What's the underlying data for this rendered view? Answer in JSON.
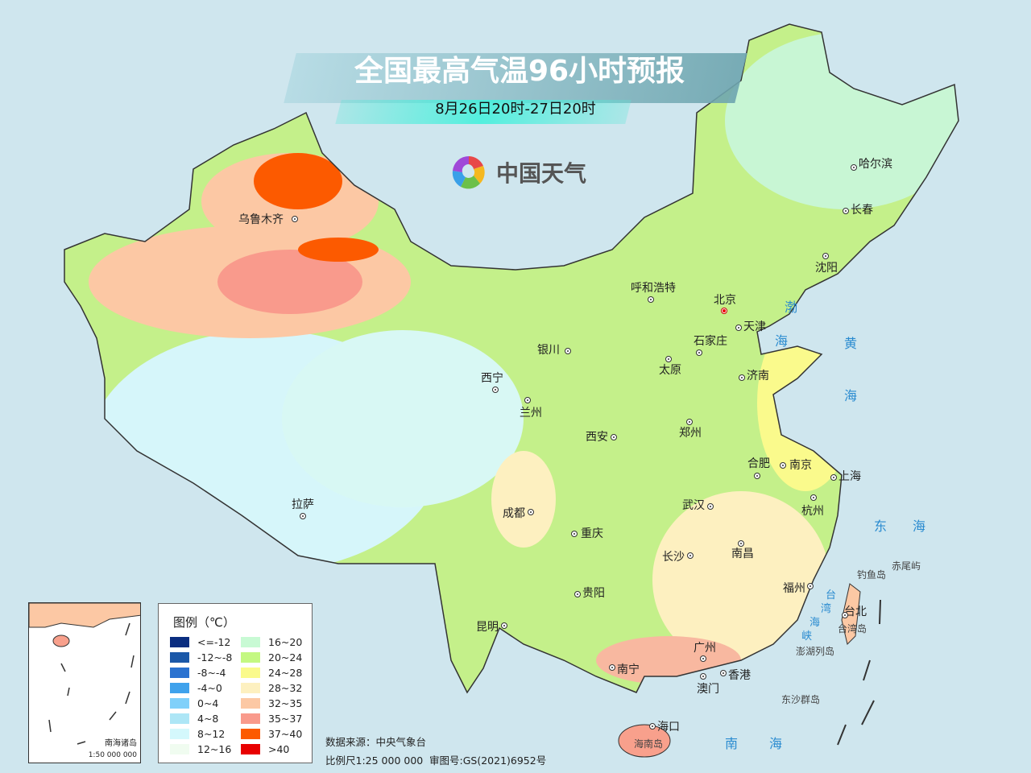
{
  "header": {
    "title": "全国最高气温96小时预报",
    "subtitle": "8月26日20时-27日20时"
  },
  "logo": {
    "text": "中国天气",
    "icon": "pinwheel-logo-icon"
  },
  "cities": [
    {
      "name": "乌鲁木齐"
    },
    {
      "name": "哈尔滨"
    },
    {
      "name": "长春"
    },
    {
      "name": "沈阳"
    },
    {
      "name": "呼和浩特"
    },
    {
      "name": "北京"
    },
    {
      "name": "天津"
    },
    {
      "name": "石家庄"
    },
    {
      "name": "太原"
    },
    {
      "name": "济南"
    },
    {
      "name": "银川"
    },
    {
      "name": "西宁"
    },
    {
      "name": "兰州"
    },
    {
      "name": "西安"
    },
    {
      "name": "郑州"
    },
    {
      "name": "合肥"
    },
    {
      "name": "南京"
    },
    {
      "name": "上海"
    },
    {
      "name": "杭州"
    },
    {
      "name": "武汉"
    },
    {
      "name": "成都"
    },
    {
      "name": "重庆"
    },
    {
      "name": "长沙"
    },
    {
      "name": "南昌"
    },
    {
      "name": "拉萨"
    },
    {
      "name": "贵阳"
    },
    {
      "name": "福州"
    },
    {
      "name": "昆明"
    },
    {
      "name": "南宁"
    },
    {
      "name": "广州"
    },
    {
      "name": "香港"
    },
    {
      "name": "澳门"
    },
    {
      "name": "海口"
    },
    {
      "name": "台北"
    }
  ],
  "seas": {
    "bohai_1": "渤",
    "bohai_2": "海",
    "huang_1": "黄",
    "huang_2": "海",
    "dong_1": "东",
    "dong_2": "海",
    "tw_1": "台",
    "tw_2": "湾",
    "tw_3": "海",
    "tw_4": "峡",
    "nan_1": "南",
    "nan_2": "海"
  },
  "islands": {
    "diaoyu": "钓鱼岛",
    "chiwei": "赤尾屿",
    "taiwan": "台湾岛",
    "penghu": "澎湖列岛",
    "dongsha": "东沙群岛",
    "hainan": "海南岛"
  },
  "legend": {
    "title": "图例（℃）",
    "items": [
      {
        "label": "<=-12",
        "color": "#0a2d80"
      },
      {
        "label": "-12~-8",
        "color": "#1b58a8"
      },
      {
        "label": "-8~-4",
        "color": "#2a72d0"
      },
      {
        "label": "-4~0",
        "color": "#3fa2ec"
      },
      {
        "label": "0~4",
        "color": "#80d0fa"
      },
      {
        "label": "4~8",
        "color": "#ade6f6"
      },
      {
        "label": "8~12",
        "color": "#d4f8fc"
      },
      {
        "label": "12~16",
        "color": "#f0fcf0"
      },
      {
        "label": "16~20",
        "color": "#c8fad4"
      },
      {
        "label": "20~24",
        "color": "#c4f882"
      },
      {
        "label": "24~28",
        "color": "#fafa8c"
      },
      {
        "label": "28~32",
        "color": "#fdf0c0"
      },
      {
        "label": "32~35",
        "color": "#fcc8a4"
      },
      {
        "label": "35~37",
        "color": "#f99a8c"
      },
      {
        "label": "37~40",
        "color": "#fc5a00"
      },
      {
        "label": ">40",
        "color": "#e80000"
      }
    ]
  },
  "inset": {
    "name": "南海诸岛",
    "scale": "1:50 000 000"
  },
  "footer": {
    "source": "数据来源：中央气象台",
    "scale": "比例尺1:25 000 000",
    "approval": "审图号:GS(2021)6952号"
  }
}
